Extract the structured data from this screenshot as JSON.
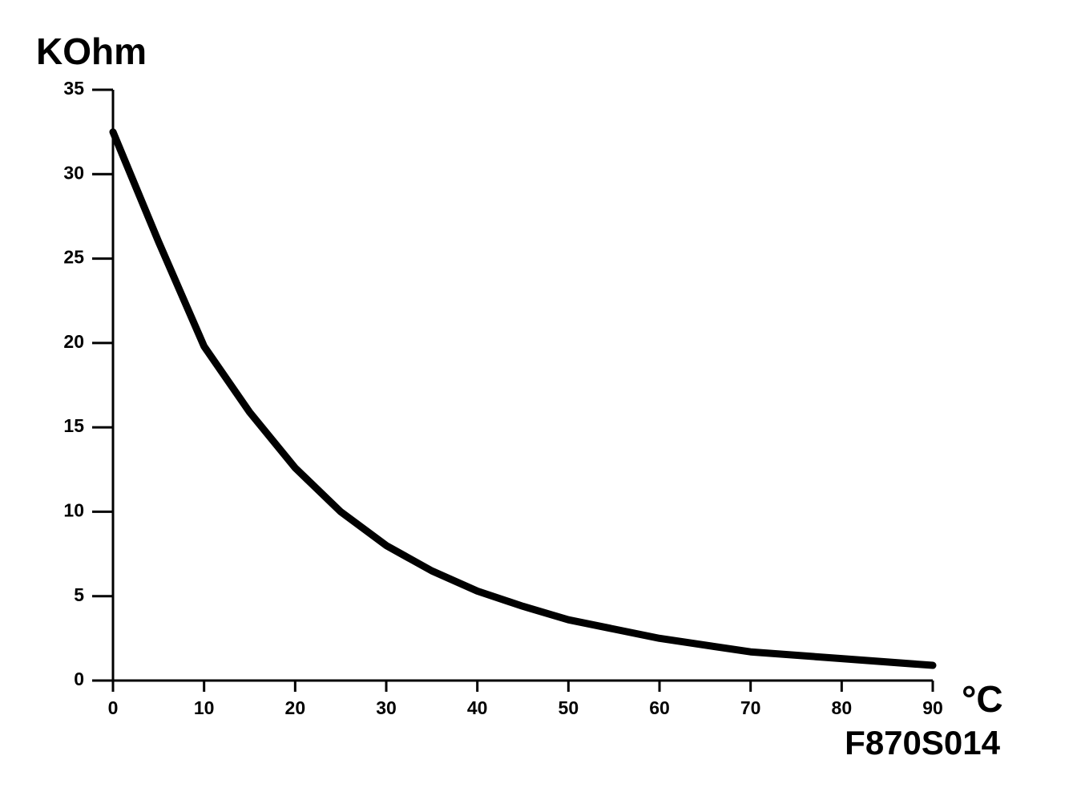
{
  "chart_data": {
    "type": "line",
    "y_label": "KOhm",
    "x_label": "°C",
    "annotation": "F870S014",
    "x": [
      0,
      5,
      10,
      15,
      20,
      25,
      30,
      35,
      40,
      45,
      50,
      60,
      70,
      80,
      90
    ],
    "series": [
      {
        "color": "#000000",
        "values": [
          32.5,
          26.0,
          19.8,
          15.9,
          12.6,
          10.0,
          8.0,
          6.5,
          5.3,
          4.4,
          3.6,
          2.5,
          1.7,
          1.3,
          0.9
        ]
      }
    ],
    "xlim": [
      0,
      90
    ],
    "xticks": [
      0,
      10,
      20,
      30,
      40,
      50,
      60,
      70,
      80,
      90
    ],
    "ylim": [
      0,
      35
    ],
    "yticks": [
      0,
      5,
      10,
      15,
      20,
      25,
      30,
      35
    ],
    "grid": false
  }
}
